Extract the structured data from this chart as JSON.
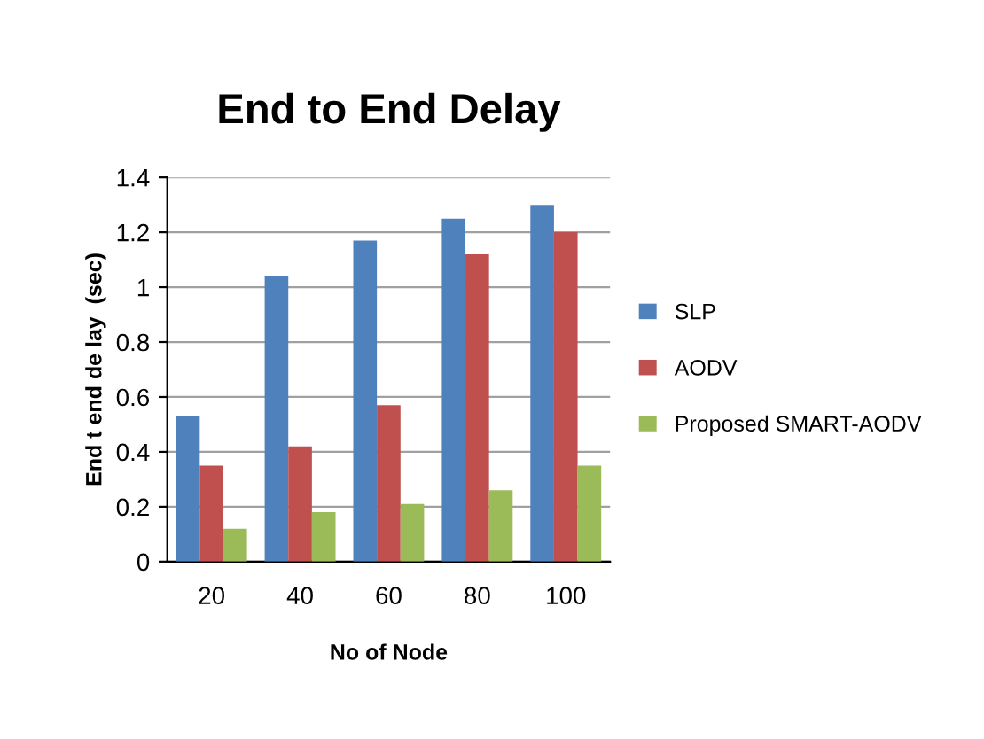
{
  "chart_data": {
    "type": "bar",
    "title": "End to End Delay",
    "xlabel": "No of Node",
    "ylabel": "End t end de lay  (sec)",
    "categories": [
      "20",
      "40",
      "60",
      "80",
      "100"
    ],
    "series": [
      {
        "name": "SLP",
        "color": "#4f81bd",
        "values": [
          0.53,
          1.04,
          1.17,
          1.25,
          1.3
        ]
      },
      {
        "name": "AODV",
        "color": "#c0504d",
        "values": [
          0.35,
          0.42,
          0.57,
          1.12,
          1.2
        ]
      },
      {
        "name": "Proposed SMART-AODV",
        "color": "#9bbb59",
        "values": [
          0.12,
          0.18,
          0.21,
          0.26,
          0.35
        ]
      }
    ],
    "ylim": [
      0,
      1.4
    ],
    "yticks": [
      0,
      0.2,
      0.4,
      0.6,
      0.8,
      1,
      1.2,
      1.4
    ],
    "grid": "y",
    "legend": "right"
  }
}
